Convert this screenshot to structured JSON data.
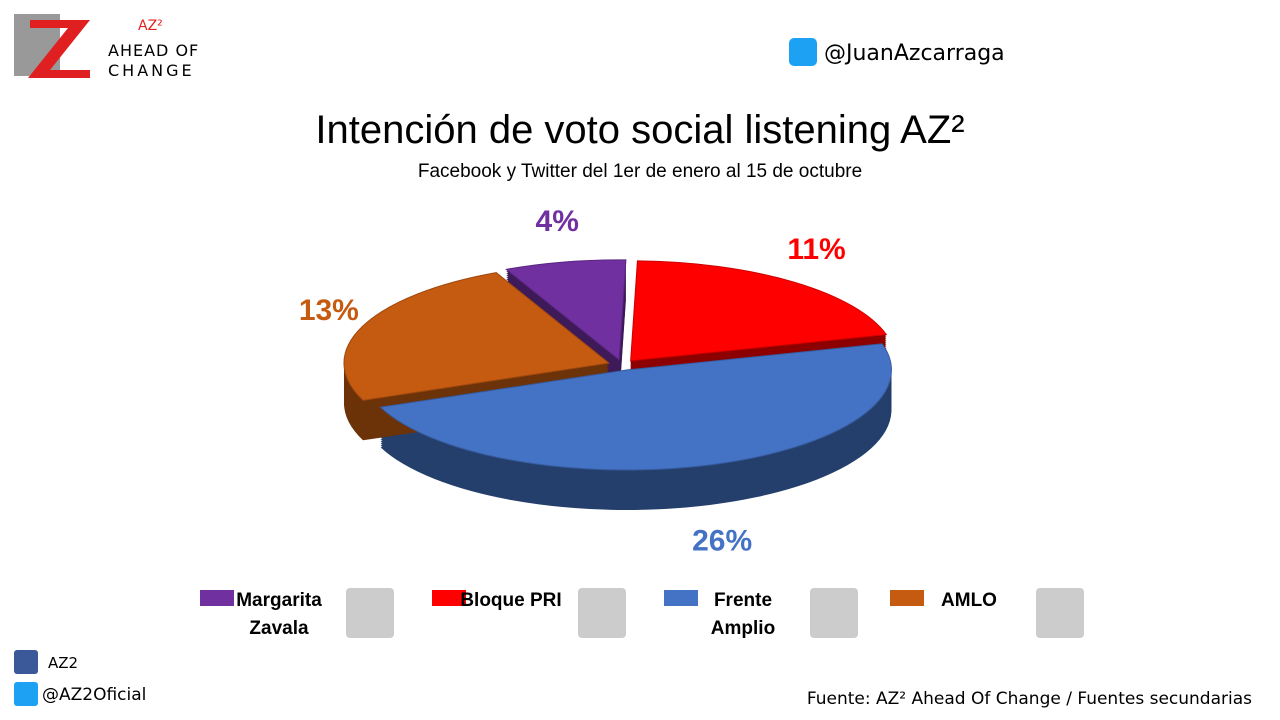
{
  "brand": {
    "name": "AZ²",
    "line1": "AHEAD OF",
    "line2": "CHANGE"
  },
  "handle": "@JuanAzcarraga",
  "footer": {
    "facebook": "AZ2",
    "twitter": "@AZ2Oficial",
    "source": "Fuente: AZ² Ahead Of Change / Fuentes secundarias"
  },
  "chart_data": {
    "type": "pie",
    "title": "Intención de voto social listening AZ²",
    "subtitle": "Facebook y Twitter del 1er de enero al 15 de octubre",
    "series": [
      {
        "name": "Margarita Zavala",
        "color": "#7030a0",
        "value": 4,
        "value_label": "4%"
      },
      {
        "name": "Bloque PRI",
        "color": "#ff0000",
        "value": 11,
        "value_label": "11%"
      },
      {
        "name": "Frente Amplio",
        "color": "#4472c4",
        "value": 26,
        "value_label": "26%"
      },
      {
        "name": "AMLO",
        "color": "#c55a11",
        "value": 13,
        "value_label": "13%"
      }
    ]
  }
}
